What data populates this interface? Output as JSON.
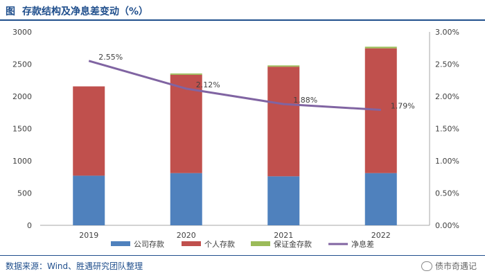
{
  "header": {
    "figure_label": "图",
    "title": "存款结构及净息差变动（%）"
  },
  "footer": {
    "source": "数据来源：Wind、胜遇研究团队整理",
    "watermark": "债市奇遇记"
  },
  "colors": {
    "company": "#4f81bd",
    "personal": "#c0504d",
    "guarantee": "#9bbb59",
    "nim": "#8064a2"
  },
  "chart_data": {
    "type": "bar",
    "stacked": true,
    "categories": [
      "2019",
      "2020",
      "2021",
      "2022"
    ],
    "series": [
      {
        "name": "公司存款",
        "type": "bar",
        "axis": "left",
        "values": [
          770,
          810,
          760,
          810
        ]
      },
      {
        "name": "个人存款",
        "type": "bar",
        "axis": "left",
        "values": [
          1385,
          1525,
          1700,
          1935
        ]
      },
      {
        "name": "保证金存款",
        "type": "bar",
        "axis": "left",
        "values": [
          0,
          20,
          20,
          25
        ]
      },
      {
        "name": "净息差",
        "type": "line",
        "axis": "right",
        "values": [
          2.55,
          2.12,
          1.88,
          1.79
        ],
        "labels": [
          "2.55%",
          "2.12%",
          "1.88%",
          "1.79%"
        ]
      }
    ],
    "y_left": {
      "min": 0,
      "max": 3000,
      "ticks": [
        "0",
        "500",
        "1000",
        "1500",
        "2000",
        "2500",
        "3000"
      ]
    },
    "y_right": {
      "min": 0,
      "max": 3,
      "ticks": [
        "0.00%",
        "0.50%",
        "1.00%",
        "1.50%",
        "2.00%",
        "2.50%",
        "3.00%"
      ]
    },
    "legend": [
      "公司存款",
      "个人存款",
      "保证金存款",
      "净息差"
    ],
    "legend_position": "bottom"
  }
}
